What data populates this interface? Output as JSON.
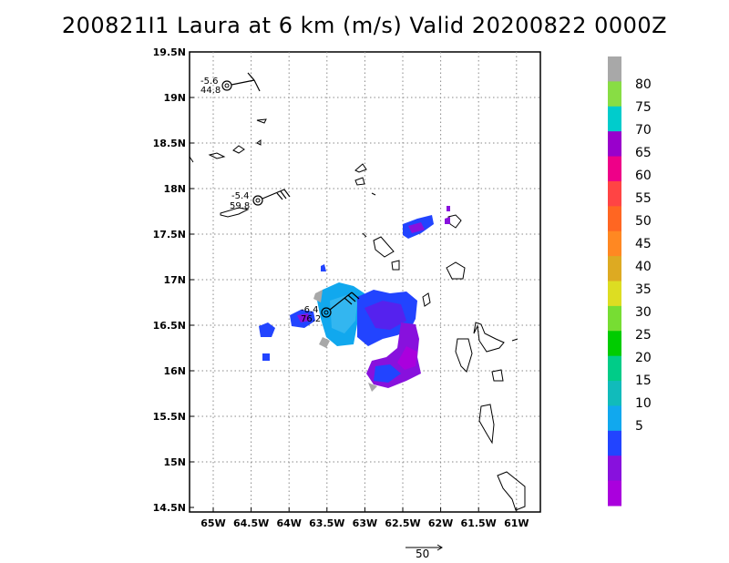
{
  "title": "200821I1 Laura at 6 km (m/s) Valid 20200822 0000Z",
  "map": {
    "y_ticks": [
      "19.5N",
      "19N",
      "18.5N",
      "18N",
      "17.5N",
      "17N",
      "16.5N",
      "16N",
      "15.5N",
      "15N",
      "14.5N"
    ],
    "x_ticks": [
      "65W",
      "64.5W",
      "64W",
      "63.5W",
      "63W",
      "62.5W",
      "62W",
      "61.5W",
      "61W"
    ]
  },
  "colorbar": {
    "labels": [
      "80",
      "75",
      "70",
      "65",
      "60",
      "55",
      "50",
      "45",
      "40",
      "35",
      "30",
      "25",
      "20",
      "15",
      "10",
      "5"
    ],
    "colors": [
      "#a8a8a8",
      "#88dd44",
      "#00cccc",
      "#9900cc",
      "#ee0088",
      "#ff4444",
      "#ff6622",
      "#ff8822",
      "#ddaa22",
      "#dddd22",
      "#77dd33",
      "#00cc00",
      "#00cc88",
      "#11bbbb",
      "#11a8ee",
      "#2244ff",
      "#8811dd",
      "#aa00dd"
    ]
  },
  "observations": [
    {
      "top": "-5.6",
      "bottom": "44.8"
    },
    {
      "top": "-5.4",
      "bottom": "59.8"
    },
    {
      "top": "-6.4",
      "bottom": "76.2"
    }
  ],
  "scale_arrow": {
    "label": "50"
  }
}
